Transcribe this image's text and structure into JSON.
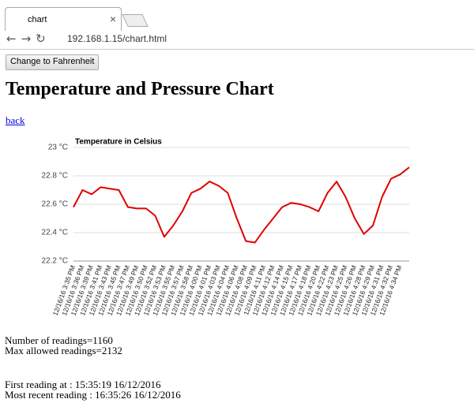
{
  "browser": {
    "tab_title": "chart",
    "url": "192.168.1.15/chart.html"
  },
  "page": {
    "button": "Change to Fahrenheit",
    "heading": "Temperature and Pressure Chart",
    "link": "back",
    "readings": [
      "Number of readings=1160",
      "Max allowed readings=2132"
    ],
    "times": [
      "First reading at : 15:35:19 16/12/2016",
      "Most recent reading : 16:35:26 16/12/2016"
    ]
  },
  "chart_data": {
    "type": "line",
    "title": "Temperature in Celsius",
    "color": "#e00000",
    "grid": true,
    "categories": [
      "12/16/16 3:35 PM",
      "12/16/16 3:36 PM",
      "12/16/16 3:39 PM",
      "12/16/16 3:41 PM",
      "12/16/16 3:43 PM",
      "12/16/16 3:45 PM",
      "12/16/16 3:47 PM",
      "12/16/16 3:49 PM",
      "12/16/16 3:50 PM",
      "12/16/16 3:52 PM",
      "12/16/16 3:53 PM",
      "12/16/16 3:55 PM",
      "12/16/16 3:57 PM",
      "12/16/16 3:58 PM",
      "12/16/16 4:00 PM",
      "12/16/16 4:01 PM",
      "12/16/16 4:03 PM",
      "12/16/16 4:04 PM",
      "12/16/16 4:06 PM",
      "12/16/16 4:08 PM",
      "12/16/16 4:09 PM",
      "12/16/16 4:11 PM",
      "12/16/16 4:12 PM",
      "12/16/16 4:14 PM",
      "12/16/16 4:15 PM",
      "12/16/16 4:17 PM",
      "12/16/16 4:18 PM",
      "12/16/16 4:20 PM",
      "12/16/16 4:22 PM",
      "12/16/16 4:23 PM",
      "12/16/16 4:25 PM",
      "12/16/16 4:26 PM",
      "12/16/16 4:28 PM",
      "12/16/16 4:29 PM",
      "12/16/16 4:31 PM",
      "12/16/16 4:32 PM",
      "12/16/16 4:34 PM",
      null
    ],
    "values": [
      22.58,
      22.7,
      22.67,
      22.72,
      22.71,
      22.7,
      22.58,
      22.57,
      22.57,
      22.52,
      22.37,
      22.45,
      22.55,
      22.68,
      22.71,
      22.76,
      22.73,
      22.68,
      22.5,
      22.34,
      22.33,
      22.42,
      22.5,
      22.58,
      22.61,
      22.6,
      22.58,
      22.55,
      22.68,
      22.76,
      22.65,
      22.5,
      22.39,
      22.45,
      22.65,
      22.78,
      22.81,
      22.86
    ],
    "ylim": [
      22.2,
      23
    ],
    "yticks": [
      {
        "value": 22.2,
        "label": "22.2 °C"
      },
      {
        "value": 22.4,
        "label": "22.4 °C"
      },
      {
        "value": 22.6,
        "label": "22.6 °C"
      },
      {
        "value": 22.8,
        "label": "22.8 °C"
      },
      {
        "value": 23,
        "label": "23 °C"
      }
    ]
  }
}
